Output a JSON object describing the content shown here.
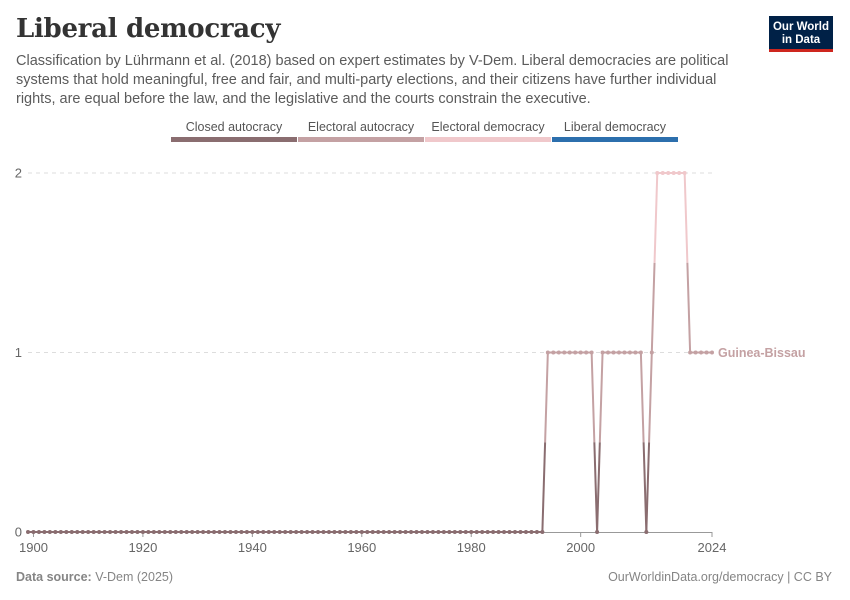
{
  "header": {
    "title": "Liberal democracy",
    "subtitle": "Classification by Lührmann et al. (2018) based on expert estimates by V-Dem. Liberal democracies are political systems that hold meaningful, free and fair, and multi-party elections, and their citizens have further individual rights, are equal before the law, and the legislative and the courts constrain the executive.",
    "logo_line1": "Our World",
    "logo_line2": "in Data"
  },
  "footer": {
    "source_label": "Data source:",
    "source_value": "V-Dem (2025)",
    "url": "OurWorldinData.org/democracy | CC BY"
  },
  "colors": {
    "closed_autocracy": "#8a6d70",
    "electoral_autocracy": "#c4a1a3",
    "electoral_democracy": "#f0c8cb",
    "liberal_democracy": "#2c6fad",
    "grid": "#dddddd",
    "axis": "#666666",
    "text": "#5b5b5b"
  },
  "chart_data": {
    "type": "line",
    "title": "Liberal democracy",
    "xlabel": "",
    "ylabel": "",
    "xlim": [
      1899,
      2024
    ],
    "ylim": [
      0,
      2
    ],
    "x_ticks": [
      "1900",
      "1920",
      "1940",
      "1960",
      "1980",
      "2000",
      "2024"
    ],
    "x_tick_values": [
      1900,
      1920,
      1940,
      1960,
      1980,
      2000,
      2024
    ],
    "y_ticks": [
      "0",
      "1",
      "2"
    ],
    "y_tick_values": [
      0,
      1,
      2
    ],
    "grid": "horizontal dashed",
    "legend": {
      "placement": "top",
      "entries": [
        "Closed autocracy",
        "Electoral autocracy",
        "Electoral democracy",
        "Liberal democracy"
      ]
    },
    "series": [
      {
        "name": "Guinea-Bissau",
        "segments": [
          {
            "from": 1899,
            "to": 1993,
            "value": 0
          },
          {
            "from": 1994,
            "to": 2002,
            "value": 1
          },
          {
            "from": 2003,
            "to": 2003,
            "value": 0
          },
          {
            "from": 2004,
            "to": 2011,
            "value": 1
          },
          {
            "from": 2012,
            "to": 2012,
            "value": 0
          },
          {
            "from": 2013,
            "to": 2013,
            "value": 1
          },
          {
            "from": 2014,
            "to": 2019,
            "value": 2
          },
          {
            "from": 2020,
            "to": 2024,
            "value": 1
          }
        ]
      }
    ]
  }
}
